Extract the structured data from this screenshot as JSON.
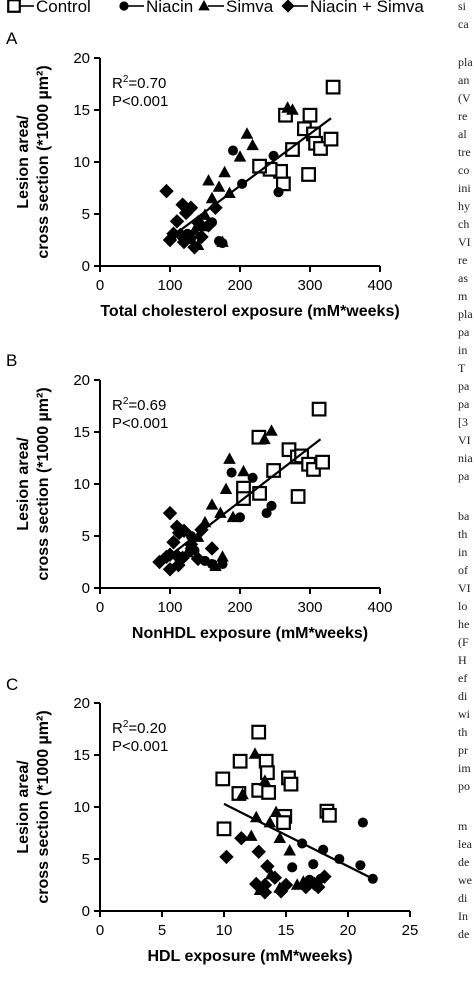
{
  "legend": {
    "items": [
      {
        "marker": "square",
        "label": "Control"
      },
      {
        "marker": "circle",
        "label": "Niacin"
      },
      {
        "marker": "triangle",
        "label": "Simva"
      },
      {
        "marker": "diamond",
        "label": "Niacin + Simva"
      }
    ]
  },
  "side_text": {
    "fragments": [
      "si",
      "ca",
      "pla",
      "an",
      "(V",
      "re",
      "al",
      "tre",
      "co",
      "ini",
      "hy",
      "ch",
      "VI",
      "re",
      "as",
      "m",
      "pla",
      "pa",
      "in",
      "T",
      "pa",
      "pa",
      "[3",
      "VI",
      "nia",
      "pa",
      "ba",
      "th",
      "in",
      "of",
      "VI",
      "lo",
      "he",
      "(F",
      "H",
      "ef",
      "di",
      "wi",
      "th",
      "pr",
      "im",
      "po",
      "m",
      "lea",
      "de",
      "we",
      "di",
      "In",
      "de"
    ]
  },
  "chart_data": [
    {
      "panel": "A",
      "type": "scatter",
      "xlabel": "Total cholesterol exposure (mM*weeks)",
      "ylabel_line1": "Lesion area/",
      "ylabel_line2": "cross section (*1000 µm²)",
      "xlim": [
        0,
        400
      ],
      "ylim": [
        0,
        20
      ],
      "xticks": [
        "0",
        "100",
        "200",
        "300",
        "400"
      ],
      "yticks": [
        "0",
        "5",
        "10",
        "15",
        "20"
      ],
      "stat_r2": "0.70",
      "stat_p": "P<0.001",
      "fit": {
        "x": [
          100,
          330
        ],
        "y": [
          2.7,
          14.2
        ]
      },
      "series": [
        {
          "marker": "square",
          "points": [
            [
              265,
              14.5
            ],
            [
              275,
              11.2
            ],
            [
              292,
              13.2
            ],
            [
              300,
              14.5
            ],
            [
              305,
              12.7
            ],
            [
              308,
              11.8
            ],
            [
              315,
              11.3
            ],
            [
              333,
              17.2
            ],
            [
              330,
              12.2
            ],
            [
              298,
              8.8
            ],
            [
              262,
              7.9
            ],
            [
              258,
              9.1
            ],
            [
              243,
              9.3
            ],
            [
              228,
              9.6
            ]
          ]
        },
        {
          "marker": "circle",
          "points": [
            [
              190,
              11.1
            ],
            [
              248,
              10.6
            ],
            [
              255,
              7.1
            ],
            [
              203,
              7.9
            ],
            [
              165,
              5.6
            ],
            [
              160,
              4.2
            ],
            [
              170,
              2.4
            ],
            [
              175,
              2.2
            ],
            [
              130,
              2.6
            ],
            [
              125,
              3.1
            ]
          ]
        },
        {
          "marker": "triangle",
          "points": [
            [
              275,
              15.0
            ],
            [
              268,
              15.2
            ],
            [
              210,
              12.7
            ],
            [
              218,
              11.6
            ],
            [
              200,
              10.5
            ],
            [
              178,
              9.0
            ],
            [
              155,
              8.2
            ],
            [
              170,
              7.6
            ],
            [
              185,
              7.0
            ],
            [
              160,
              6.5
            ],
            [
              150,
              4.9
            ],
            [
              145,
              3.8
            ],
            [
              135,
              3.4
            ],
            [
              175,
              2.3
            ],
            [
              140,
              2.0
            ]
          ]
        },
        {
          "marker": "diamond",
          "points": [
            [
              95,
              7.2
            ],
            [
              118,
              5.9
            ],
            [
              123,
              5.1
            ],
            [
              130,
              5.6
            ],
            [
              140,
              4.2
            ],
            [
              110,
              4.3
            ],
            [
              105,
              3.1
            ],
            [
              115,
              3.0
            ],
            [
              123,
              2.8
            ],
            [
              120,
              2.3
            ],
            [
              100,
              2.5
            ],
            [
              135,
              1.8
            ],
            [
              145,
              2.8
            ],
            [
              155,
              3.9
            ],
            [
              165,
              5.6
            ]
          ]
        }
      ]
    },
    {
      "panel": "B",
      "type": "scatter",
      "xlabel": "NonHDL exposure (mM*weeks)",
      "ylabel_line1": "Lesion area/",
      "ylabel_line2": "cross section (*1000 µm²)",
      "xlim": [
        0,
        400
      ],
      "ylim": [
        0,
        20
      ],
      "xticks": [
        "0",
        "100",
        "200",
        "300",
        "400"
      ],
      "yticks": [
        "0",
        "5",
        "10",
        "15",
        "20"
      ],
      "stat_r2": "0.69",
      "stat_p": "P<0.001",
      "fit": {
        "x": [
          90,
          315
        ],
        "y": [
          2.6,
          14.3
        ]
      },
      "series": [
        {
          "marker": "square",
          "points": [
            [
              227,
              14.5
            ],
            [
              270,
              13.3
            ],
            [
              282,
              12.6
            ],
            [
              288,
              12.7
            ],
            [
              298,
              11.9
            ],
            [
              305,
              11.4
            ],
            [
              313,
              17.2
            ],
            [
              318,
              12.1
            ],
            [
              283,
              8.8
            ],
            [
              248,
              11.3
            ],
            [
              228,
              9.1
            ],
            [
              205,
              9.6
            ],
            [
              205,
              8.6
            ]
          ]
        },
        {
          "marker": "circle",
          "points": [
            [
              188,
              11.1
            ],
            [
              218,
              10.6
            ],
            [
              245,
              7.9
            ],
            [
              238,
              7.2
            ],
            [
              200,
              6.8
            ],
            [
              130,
              5.0
            ],
            [
              135,
              3.6
            ],
            [
              150,
              2.6
            ],
            [
              160,
              2.3
            ],
            [
              175,
              2.3
            ]
          ]
        },
        {
          "marker": "triangle",
          "points": [
            [
              245,
              15.1
            ],
            [
              235,
              14.3
            ],
            [
              185,
              12.4
            ],
            [
              205,
              11.2
            ],
            [
              180,
              9.5
            ],
            [
              160,
              8.0
            ],
            [
              172,
              7.2
            ],
            [
              190,
              6.8
            ],
            [
              150,
              6.3
            ],
            [
              140,
              4.9
            ],
            [
              130,
              4.2
            ],
            [
              125,
              3.4
            ],
            [
              175,
              3.0
            ],
            [
              165,
              2.1
            ]
          ]
        },
        {
          "marker": "diamond",
          "points": [
            [
              100,
              7.2
            ],
            [
              110,
              5.9
            ],
            [
              113,
              5.3
            ],
            [
              120,
              5.5
            ],
            [
              130,
              4.2
            ],
            [
              105,
              4.4
            ],
            [
              100,
              3.2
            ],
            [
              110,
              3.1
            ],
            [
              118,
              2.9
            ],
            [
              85,
              2.5
            ],
            [
              100,
              1.8
            ],
            [
              112,
              2.2
            ],
            [
              140,
              2.8
            ],
            [
              160,
              3.8
            ],
            [
              145,
              5.6
            ],
            [
              95,
              3.0
            ]
          ]
        }
      ]
    },
    {
      "panel": "C",
      "type": "scatter",
      "xlabel": "HDL exposure (mM*weeks)",
      "ylabel_line1": "Lesion area/",
      "ylabel_line2": "cross section (*1000 µm²)",
      "xlim": [
        0,
        25
      ],
      "ylim": [
        0,
        20
      ],
      "xticks": [
        "0",
        "5",
        "10",
        "15",
        "20",
        "25"
      ],
      "yticks": [
        "0",
        "5",
        "10",
        "15",
        "20"
      ],
      "stat_r2": "0.20",
      "stat_p": "P<0.001",
      "fit": {
        "x": [
          10,
          22
        ],
        "y": [
          10.3,
          3.1
        ]
      },
      "series": [
        {
          "marker": "square",
          "points": [
            [
              12.8,
              17.2
            ],
            [
              9.9,
              12.7
            ],
            [
              11.3,
              14.4
            ],
            [
              11.2,
              11.3
            ],
            [
              12.8,
              11.6
            ],
            [
              13.4,
              14.4
            ],
            [
              13.5,
              13.3
            ],
            [
              13.6,
              11.4
            ],
            [
              15.2,
              12.8
            ],
            [
              15.4,
              12.2
            ],
            [
              14.9,
              9.1
            ],
            [
              14.8,
              8.5
            ],
            [
              18.3,
              9.6
            ],
            [
              18.5,
              9.2
            ],
            [
              10.0,
              7.9
            ]
          ]
        },
        {
          "marker": "circle",
          "points": [
            [
              21.2,
              8.5
            ],
            [
              19.3,
              5.0
            ],
            [
              21.0,
              4.4
            ],
            [
              22.0,
              3.1
            ],
            [
              17.2,
              4.5
            ],
            [
              16.9,
              3.0
            ],
            [
              15.5,
              4.2
            ],
            [
              18.0,
              5.9
            ],
            [
              16.3,
              6.5
            ],
            [
              17.8,
              3.1
            ]
          ]
        },
        {
          "marker": "triangle",
          "points": [
            [
              12.5,
              15.1
            ],
            [
              13.3,
              12.5
            ],
            [
              11.5,
              11.2
            ],
            [
              14.2,
              9.5
            ],
            [
              12.6,
              9.0
            ],
            [
              13.7,
              8.5
            ],
            [
              14.5,
              7.0
            ],
            [
              15.3,
              5.8
            ],
            [
              12.2,
              7.2
            ],
            [
              16.4,
              2.8
            ],
            [
              15.9,
              2.5
            ],
            [
              14.5,
              2.2
            ],
            [
              12.9,
              2.0
            ],
            [
              13.8,
              3.5
            ]
          ]
        },
        {
          "marker": "diamond",
          "points": [
            [
              10.2,
              5.2
            ],
            [
              11.4,
              7.0
            ],
            [
              12.8,
              5.7
            ],
            [
              13.5,
              4.3
            ],
            [
              13.3,
              2.5
            ],
            [
              14.1,
              3.2
            ],
            [
              14.6,
              1.9
            ],
            [
              15.0,
              2.5
            ],
            [
              17.3,
              2.6
            ],
            [
              17.6,
              2.3
            ],
            [
              18.1,
              3.3
            ],
            [
              16.6,
              2.3
            ],
            [
              12.6,
              2.6
            ],
            [
              13.3,
              1.8
            ]
          ]
        }
      ]
    }
  ]
}
